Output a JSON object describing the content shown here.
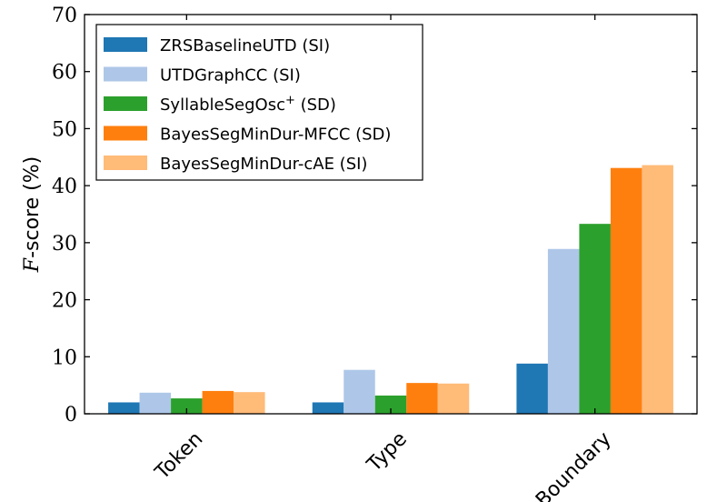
{
  "chart_data": {
    "type": "bar",
    "ylabel_italic": "F",
    "ylabel": "-score (%)",
    "ylim": [
      0,
      70
    ],
    "yticks": [
      "0",
      "10",
      "20",
      "30",
      "40",
      "50",
      "60",
      "70"
    ],
    "categories": [
      "Token",
      "Type",
      "Boundary"
    ],
    "legend_position": "top-left",
    "series": [
      {
        "name": "ZRSBaselineUTD (SI)",
        "color": "#1f77b4",
        "values": [
          2.0,
          2.0,
          8.8
        ]
      },
      {
        "name": "UTDGraphCC (SI)",
        "color": "#aec7e8",
        "values": [
          3.7,
          7.7,
          28.9
        ]
      },
      {
        "name": "SyllableSegOsc",
        "name_sup": "+",
        "name_suffix": " (SD)",
        "color": "#2ca02c",
        "values": [
          2.7,
          3.2,
          33.3
        ]
      },
      {
        "name": "BayesSegMinDur-MFCC (SD)",
        "color": "#ff7f0e",
        "values": [
          4.0,
          5.4,
          43.1
        ]
      },
      {
        "name": "BayesSegMinDur-cAE (SI)",
        "color": "#ffbb78",
        "values": [
          3.8,
          5.3,
          43.6
        ]
      }
    ]
  }
}
